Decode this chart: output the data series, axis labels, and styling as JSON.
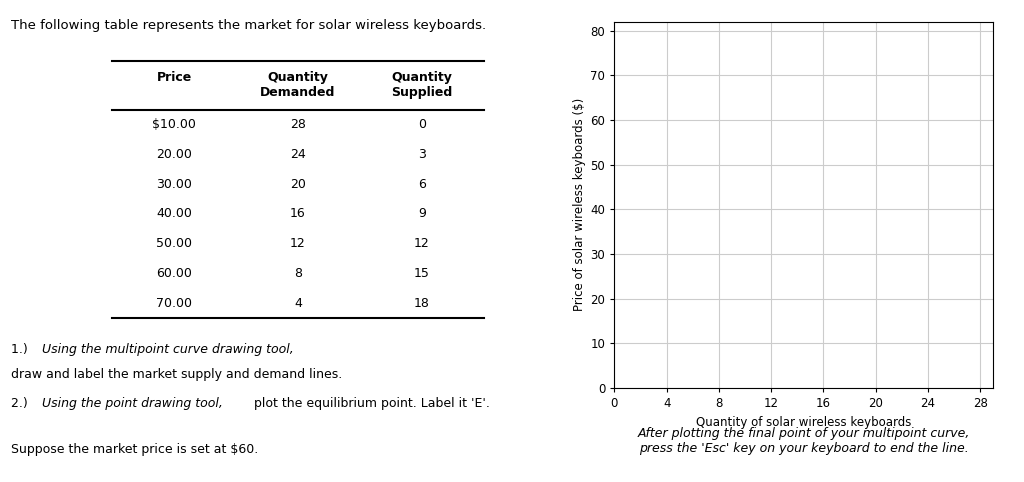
{
  "title_text": "The following table represents the market for solar wireless keyboards.",
  "table_headers": [
    "Price",
    "Quantity\nDemanded",
    "Quantity\nSupplied"
  ],
  "table_data": [
    [
      "$10.00",
      "28",
      "0"
    ],
    [
      "20.00",
      "24",
      "3"
    ],
    [
      "30.00",
      "20",
      "6"
    ],
    [
      "40.00",
      "16",
      "9"
    ],
    [
      "50.00",
      "12",
      "12"
    ],
    [
      "60.00",
      "8",
      "15"
    ],
    [
      "70.00",
      "4",
      "18"
    ]
  ],
  "chart_ylabel": "Price of solar wireless keyboards ($)",
  "chart_xlabel": "Quantity of solar wireless keyboards",
  "chart_yticks": [
    0,
    10,
    20,
    30,
    40,
    50,
    60,
    70,
    80
  ],
  "chart_xticks": [
    0,
    4,
    8,
    12,
    16,
    20,
    24,
    28
  ],
  "chart_xlim": [
    0,
    29
  ],
  "chart_ylim": [
    0,
    82
  ],
  "grid_color": "#cccccc",
  "after_text": "After plotting the final point of your multipoint curve,\npress the 'Esc' key on your keyboard to end the line.",
  "bg_color": "#ffffff",
  "text_color": "#000000"
}
